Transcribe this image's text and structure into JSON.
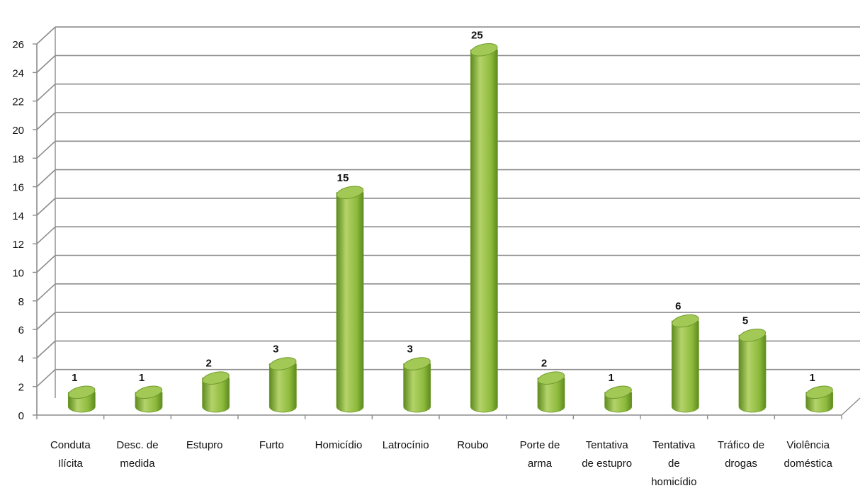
{
  "chart_data": {
    "type": "bar",
    "style": "3d-cylinder",
    "categories": [
      "Conduta Ilícita",
      "Desc. de medida",
      "Estupro",
      "Furto",
      "Homicídio",
      "Latrocínio",
      "Roubo",
      "Porte de arma",
      "Tentativa de estupro",
      "Tentativa de homicídio",
      "Tráfico de drogas",
      "Violência doméstica"
    ],
    "category_label_lines": [
      [
        "Conduta",
        "Ilícita"
      ],
      [
        "Desc. de",
        "medida"
      ],
      [
        "Estupro"
      ],
      [
        "Furto"
      ],
      [
        "Homicídio"
      ],
      [
        "Latrocínio"
      ],
      [
        "Roubo"
      ],
      [
        "Porte de",
        "arma"
      ],
      [
        "Tentativa",
        "de estupro"
      ],
      [
        "Tentativa",
        "de",
        "homicídio"
      ],
      [
        "Tráfico de",
        "drogas"
      ],
      [
        "Violência",
        "doméstica"
      ]
    ],
    "values": [
      1,
      1,
      2,
      3,
      15,
      3,
      25,
      2,
      1,
      6,
      5,
      1
    ],
    "data_labels": [
      "1",
      "1",
      "2",
      "3",
      "15",
      "3",
      "25",
      "2",
      "1",
      "6",
      "5",
      "1"
    ],
    "title": "",
    "xlabel": "",
    "ylabel": "",
    "ylim": [
      0,
      26
    ],
    "yticks": [
      "0",
      "2",
      "4",
      "6",
      "8",
      "10",
      "12",
      "14",
      "16",
      "18",
      "20",
      "22",
      "24",
      "26"
    ],
    "grid": true,
    "legend": "none",
    "colors": {
      "bar_light": "#b4d36a",
      "bar_mid": "#8dba3c",
      "bar_dark": "#5d8a1e",
      "bar_top": "#a2c955",
      "bar_top_edge": "#6f9a2c",
      "grid": "#8c8c8c",
      "axis": "#8c8c8c"
    }
  }
}
